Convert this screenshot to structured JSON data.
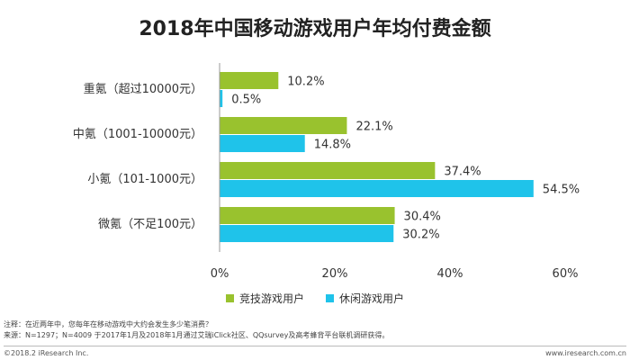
{
  "title": "2018年中国移动游戏用户年均付费金额",
  "legend": {
    "items": [
      {
        "label": "竞技游戏用户",
        "color": "#99c22e"
      },
      {
        "label": "休闲游戏用户",
        "color": "#1fc3ea"
      }
    ]
  },
  "notes": {
    "line1": "注释：在近两年中，您每年在移动游戏中大约会发生多少笔消费？",
    "line2": "来源：N=1297；N=4009 于2017年1月及2018年1月通过艾瑞iClick社区、QQsurvey及高考蜂背平台联机调研获得。"
  },
  "footer": {
    "copyright": "©2018.2 iResearch Inc.",
    "site": "www.iresearch.com.cn"
  },
  "chart_data": {
    "type": "bar",
    "orientation": "horizontal",
    "categories": [
      "重氪（超过10000元）",
      "中氪（1001-10000元）",
      "小氪（101-1000元）",
      "微氪（不足100元）"
    ],
    "series": [
      {
        "name": "竞技游戏用户",
        "color": "#99c22e",
        "values": [
          10.2,
          22.1,
          37.4,
          30.4
        ]
      },
      {
        "name": "休闲游戏用户",
        "color": "#1fc3ea",
        "values": [
          0.5,
          14.8,
          54.5,
          30.2
        ]
      }
    ],
    "xlim": [
      0,
      60
    ],
    "xticks": [
      "0%",
      "20%",
      "40%",
      "60%"
    ],
    "value_suffix": "%",
    "grid": false,
    "legend_position": "bottom"
  }
}
